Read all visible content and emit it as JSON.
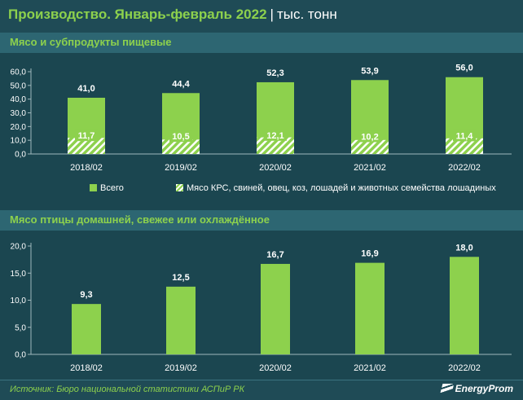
{
  "header": {
    "title": "Производство. Январь-февраль 2022",
    "separator": "|",
    "unit": "тыс. тонн"
  },
  "sections": [
    {
      "label": "Мясо и субпродукты пищевые"
    },
    {
      "label": "Мясо птицы домашней, свежее или охлаждённое"
    }
  ],
  "legend": {
    "total": "Всего",
    "hatched": "Мясо КРС, свиней, овец, коз, лошадей и животных семейства лошадиных"
  },
  "footer": {
    "source": "Источник: Бюро национальной статистики АСПиР РК",
    "logo": "EnergyProm"
  },
  "colors": {
    "background": "#1f4b56",
    "panel": "#1b4650",
    "bar": "#8dd14d",
    "accent_text": "#8dd14d",
    "text": "#ffffff"
  },
  "chart_data": [
    {
      "type": "bar",
      "title": "Мясо и субпродукты пищевые",
      "categories": [
        "2018/02",
        "2019/02",
        "2020/02",
        "2021/02",
        "2022/02"
      ],
      "series": [
        {
          "name": "Всего",
          "values": [
            41.0,
            44.4,
            52.3,
            53.9,
            56.0
          ]
        },
        {
          "name": "Мясо КРС, свиней, овец, коз, лошадей и животных семейства лошадиных",
          "values": [
            11.7,
            10.5,
            12.1,
            10.2,
            11.4
          ]
        }
      ],
      "value_labels": [
        [
          "41,0",
          "44,4",
          "52,3",
          "53,9",
          "56,0"
        ],
        [
          "11,7",
          "10,5",
          "12,1",
          "10,2",
          "11,4"
        ]
      ],
      "yticks": [
        "0,0",
        "10,0",
        "20,0",
        "30,0",
        "40,0",
        "50,0",
        "60,0"
      ],
      "ylim": [
        0,
        60
      ],
      "grid": false,
      "legend_position": "bottom"
    },
    {
      "type": "bar",
      "title": "Мясо птицы домашней, свежее или охлаждённое",
      "categories": [
        "2018/02",
        "2019/02",
        "2020/02",
        "2021/02",
        "2022/02"
      ],
      "series": [
        {
          "values": [
            9.3,
            12.5,
            16.7,
            16.9,
            18.0
          ]
        }
      ],
      "value_labels": [
        [
          "9,3",
          "12,5",
          "16,7",
          "16,9",
          "18,0"
        ]
      ],
      "yticks": [
        "0,0",
        "5,0",
        "10,0",
        "15,0",
        "20,0"
      ],
      "ylim": [
        0,
        20
      ],
      "grid": false
    }
  ]
}
